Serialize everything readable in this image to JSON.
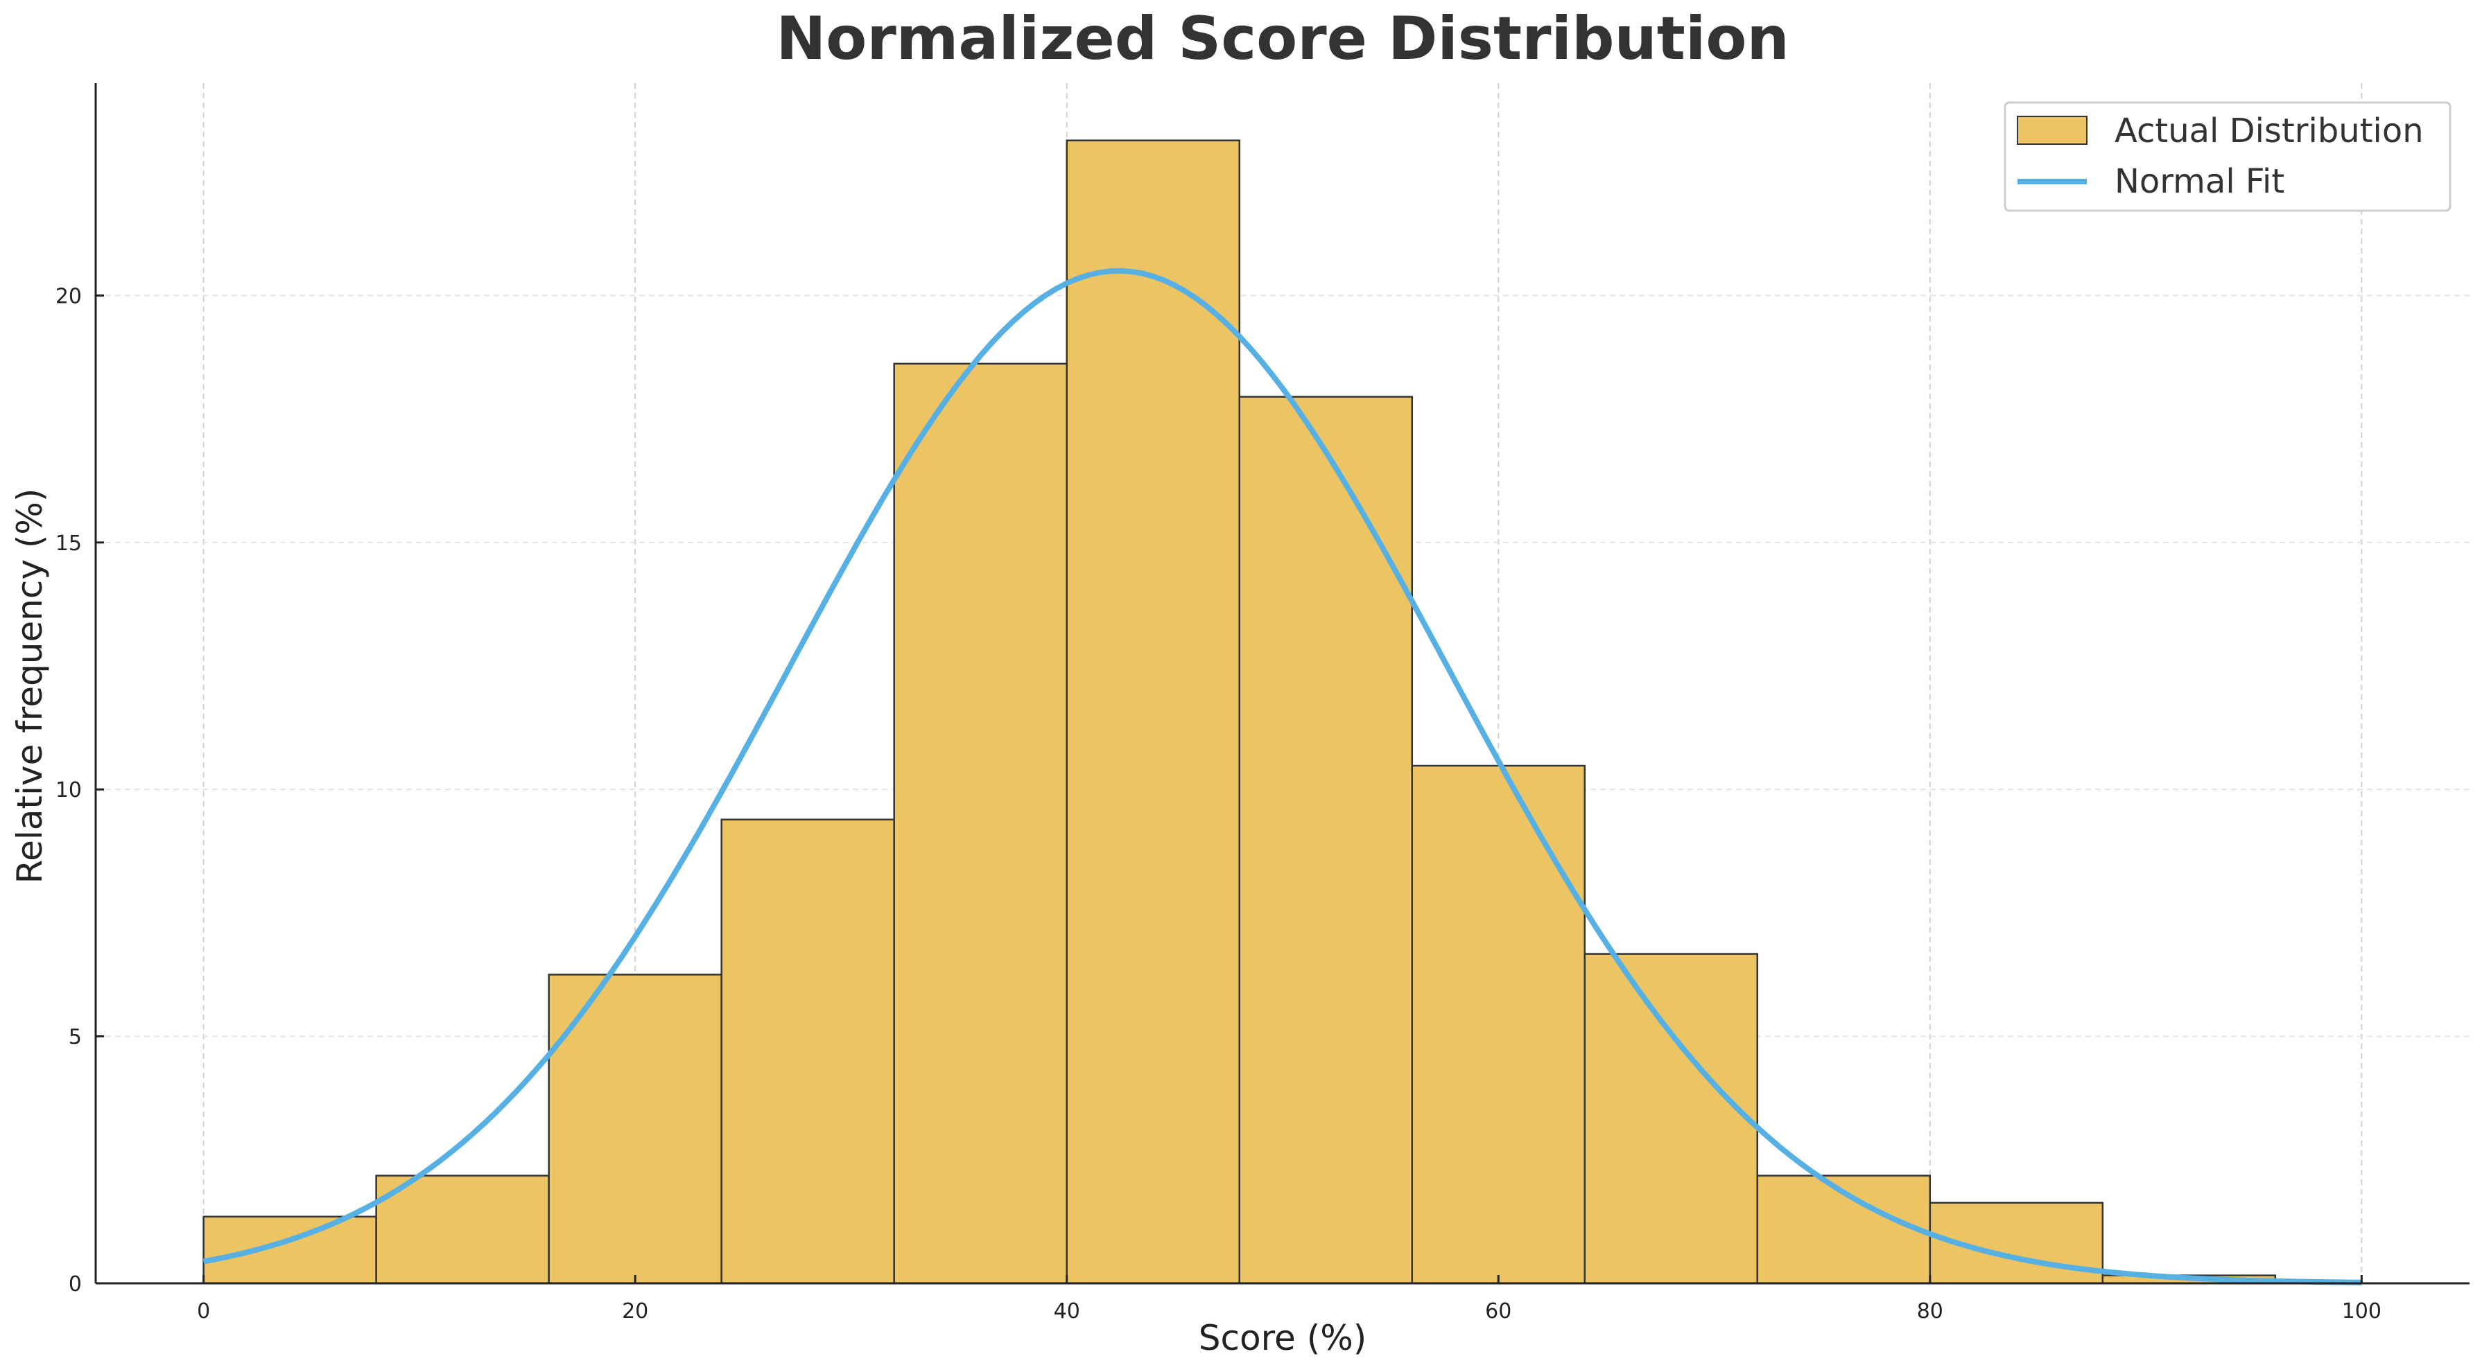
{
  "chart_data": {
    "type": "bar",
    "title": "Normalized Score Distribution",
    "xlabel": "Score (%)",
    "ylabel": "Relative frequency (%)",
    "xlim": [
      -5,
      105
    ],
    "ylim": [
      0,
      24.3
    ],
    "xticks": [
      0,
      20,
      40,
      60,
      80,
      100
    ],
    "yticks": [
      0,
      5,
      10,
      15,
      20
    ],
    "grid": true,
    "legend_position": "upper right",
    "legend": [
      "Actual Distribution",
      "Normal Fit"
    ],
    "bin_edges": [
      0,
      8,
      16,
      24,
      32,
      40,
      48,
      56,
      64,
      72,
      80,
      88,
      96
    ],
    "series": [
      {
        "name": "Actual Distribution",
        "type": "bar",
        "color": "#EDC463",
        "values": [
          1.35,
          2.18,
          6.25,
          9.39,
          18.62,
          23.14,
          17.95,
          10.48,
          6.67,
          2.18,
          1.63,
          0.16
        ]
      },
      {
        "name": "Normal Fit",
        "type": "line",
        "color": "#56B0E3",
        "mean": 42.4,
        "sd": 15.3,
        "peak": 20.5,
        "x": [
          0,
          10,
          20,
          30,
          40,
          42.4,
          50,
          60,
          70,
          80,
          90,
          100
        ],
        "values": [
          0.5,
          2.1,
          7.0,
          14.8,
          20.3,
          20.5,
          18.2,
          10.6,
          4.0,
          1.0,
          0.15,
          0.02
        ]
      }
    ]
  }
}
